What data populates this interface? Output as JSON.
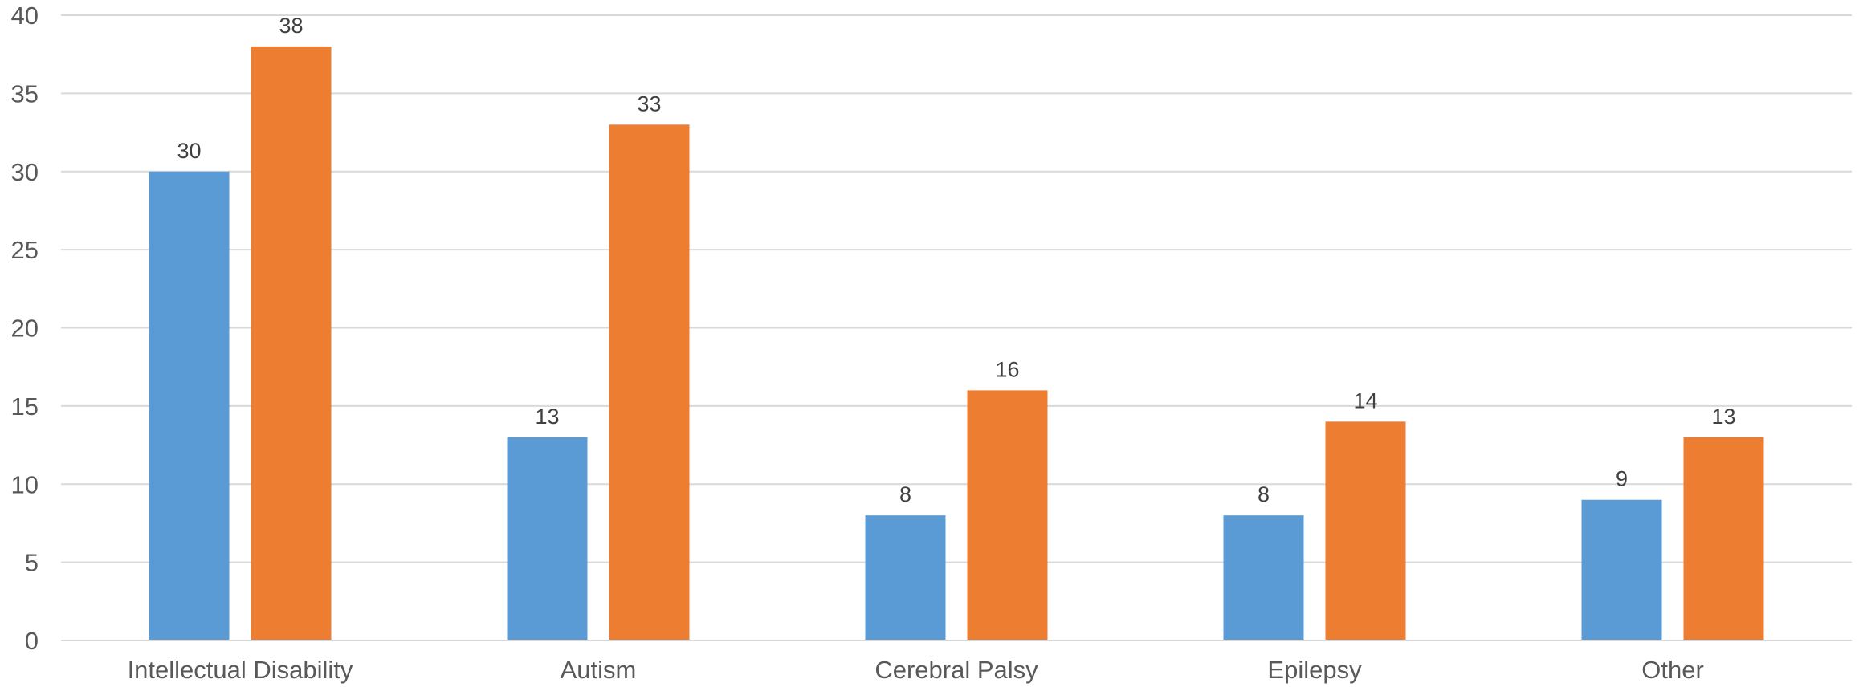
{
  "chart_data": {
    "type": "bar",
    "categories": [
      "Intellectual Disability",
      "Autism",
      "Cerebral Palsy",
      "Epilepsy",
      "Other"
    ],
    "series": [
      {
        "values": [
          30,
          13,
          8,
          8,
          9
        ],
        "color": "#5b9bd5"
      },
      {
        "values": [
          38,
          33,
          16,
          14,
          13
        ],
        "color": "#ed7d31"
      }
    ],
    "ylim": [
      0,
      40
    ],
    "yticks": [
      0,
      5,
      10,
      15,
      20,
      25,
      30,
      35,
      40
    ],
    "grid": true,
    "data_labels": true
  }
}
